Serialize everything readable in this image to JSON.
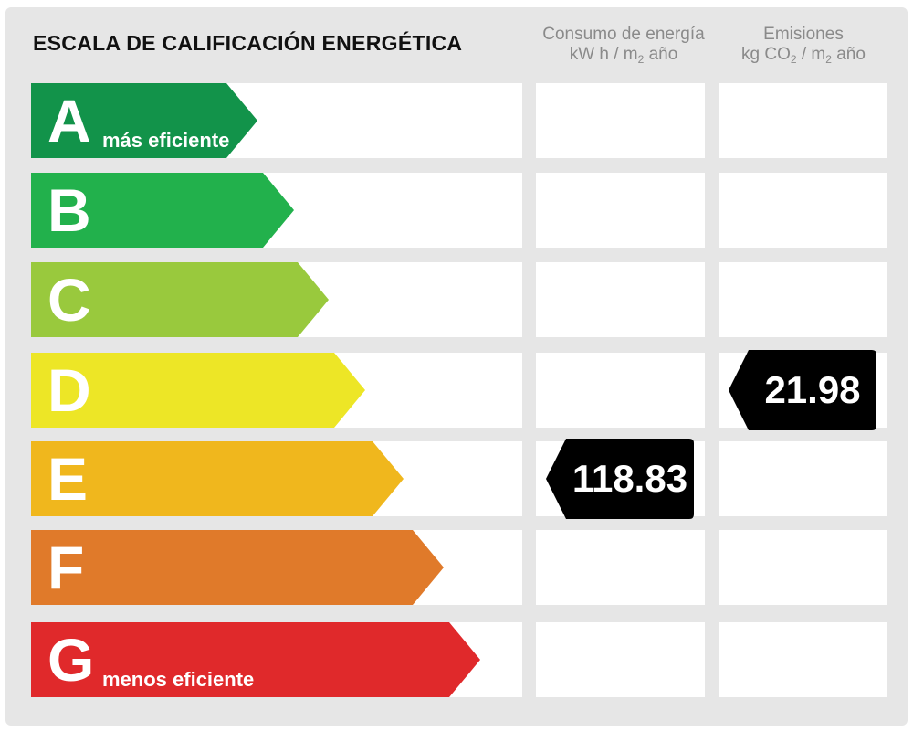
{
  "title": "ESCALA DE CALIFICACIÓN ENERGÉTICA",
  "columns": {
    "consumo": {
      "line1": "Consumo de energía",
      "line2a": "kW h / m",
      "line2sub": "2",
      "line2b": " año"
    },
    "emisiones": {
      "line1": "Emisiones",
      "line2a": "kg CO",
      "line2sub1": "2",
      "line2mid": " / m",
      "line2sub2": "2",
      "line2b": " año"
    }
  },
  "ratings": [
    {
      "letter": "A",
      "note": "más eficiente",
      "color": "#12934a"
    },
    {
      "letter": "B",
      "note": "",
      "color": "#22b14c"
    },
    {
      "letter": "C",
      "note": "",
      "color": "#99c93d"
    },
    {
      "letter": "D",
      "note": "",
      "color": "#ede626"
    },
    {
      "letter": "E",
      "note": "",
      "color": "#f0b71d"
    },
    {
      "letter": "F",
      "note": "",
      "color": "#e07a2a"
    },
    {
      "letter": "G",
      "note": "menos eficiente",
      "color": "#e0292b"
    }
  ],
  "consumo_value": {
    "rating": "E",
    "value": "118.83"
  },
  "emisiones_value": {
    "rating": "D",
    "value": "21.98"
  }
}
